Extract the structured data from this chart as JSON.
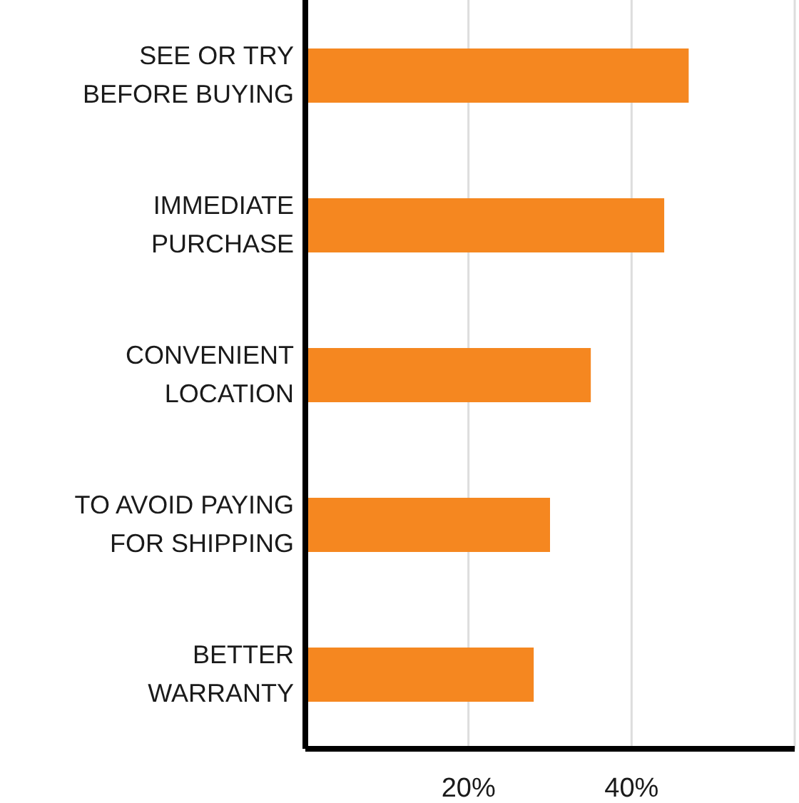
{
  "chart_data": {
    "type": "bar",
    "orientation": "horizontal",
    "categories": [
      "SEE OR TRY\nBEFORE BUYING",
      "IMMEDIATE\nPURCHASE",
      "CONVENIENT\nLOCATION",
      "TO AVOID PAYING\nFOR SHIPPING",
      "BETTER\nWARRANTY"
    ],
    "values": [
      47,
      44,
      35,
      30,
      28
    ],
    "color": "#f58720",
    "xlim": [
      0,
      60
    ],
    "xticks": [
      {
        "value": 0,
        "label": null
      },
      {
        "value": 20,
        "label": "20%"
      },
      {
        "value": 40,
        "label": "40%"
      },
      {
        "value": 60,
        "label": null
      }
    ],
    "grid": "x"
  }
}
